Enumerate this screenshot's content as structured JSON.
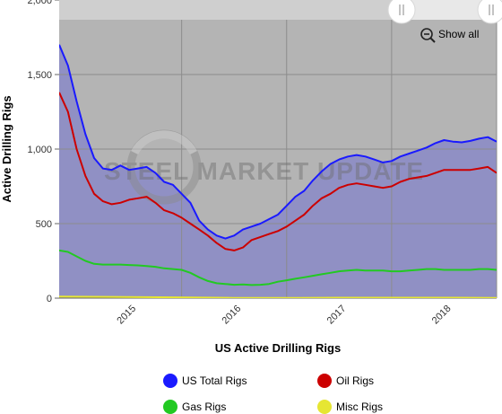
{
  "chart_data": {
    "type": "area",
    "title": "",
    "xlabel": "US Active Drilling Rigs",
    "ylabel": "Active Drilling Rigs",
    "ylim": [
      0,
      2000
    ],
    "yticks": [
      0,
      500,
      1000,
      1500,
      2000
    ],
    "ytick_labels": [
      "0",
      "500",
      "1,000",
      "1,500",
      "2,000"
    ],
    "x_tick_labels": [
      "2015",
      "2016",
      "2017",
      "2018"
    ],
    "xlim": [
      "2014-10",
      "2018-12"
    ],
    "grid": true,
    "legend_position": "bottom",
    "watermark": "STEEL MARKET UPDATE",
    "zoom_label": "Show all",
    "series": [
      {
        "name": "US Total Rigs",
        "color": "#1a1aff",
        "x": [
          "2014-10",
          "2014-11",
          "2014-12",
          "2015-01",
          "2015-02",
          "2015-03",
          "2015-04",
          "2015-05",
          "2015-06",
          "2015-07",
          "2015-08",
          "2015-09",
          "2015-10",
          "2015-11",
          "2015-12",
          "2016-01",
          "2016-02",
          "2016-03",
          "2016-04",
          "2016-05",
          "2016-06",
          "2016-07",
          "2016-08",
          "2016-09",
          "2016-10",
          "2016-11",
          "2016-12",
          "2017-01",
          "2017-02",
          "2017-03",
          "2017-04",
          "2017-05",
          "2017-06",
          "2017-07",
          "2017-08",
          "2017-09",
          "2017-10",
          "2017-11",
          "2017-12",
          "2018-01",
          "2018-02",
          "2018-03",
          "2018-04",
          "2018-05",
          "2018-06",
          "2018-07",
          "2018-08",
          "2018-09",
          "2018-10",
          "2018-11",
          "2018-12"
        ],
        "values": [
          1700,
          1560,
          1320,
          1100,
          940,
          870,
          860,
          890,
          860,
          870,
          880,
          840,
          780,
          760,
          700,
          640,
          520,
          460,
          420,
          400,
          420,
          460,
          480,
          500,
          530,
          560,
          620,
          680,
          720,
          790,
          850,
          900,
          930,
          950,
          960,
          950,
          930,
          910,
          920,
          950,
          970,
          990,
          1010,
          1040,
          1060,
          1050,
          1045,
          1055,
          1070,
          1080,
          1050
        ]
      },
      {
        "name": "Oil Rigs",
        "color": "#cc0000",
        "x": [
          "2014-10",
          "2014-11",
          "2014-12",
          "2015-01",
          "2015-02",
          "2015-03",
          "2015-04",
          "2015-05",
          "2015-06",
          "2015-07",
          "2015-08",
          "2015-09",
          "2015-10",
          "2015-11",
          "2015-12",
          "2016-01",
          "2016-02",
          "2016-03",
          "2016-04",
          "2016-05",
          "2016-06",
          "2016-07",
          "2016-08",
          "2016-09",
          "2016-10",
          "2016-11",
          "2016-12",
          "2017-01",
          "2017-02",
          "2017-03",
          "2017-04",
          "2017-05",
          "2017-06",
          "2017-07",
          "2017-08",
          "2017-09",
          "2017-10",
          "2017-11",
          "2017-12",
          "2018-01",
          "2018-02",
          "2018-03",
          "2018-04",
          "2018-05",
          "2018-06",
          "2018-07",
          "2018-08",
          "2018-09",
          "2018-10",
          "2018-11",
          "2018-12"
        ],
        "values": [
          1380,
          1250,
          1000,
          820,
          700,
          650,
          630,
          640,
          660,
          670,
          680,
          640,
          590,
          570,
          540,
          500,
          460,
          420,
          370,
          330,
          320,
          340,
          390,
          410,
          430,
          450,
          480,
          520,
          560,
          620,
          670,
          700,
          740,
          760,
          770,
          760,
          750,
          740,
          750,
          780,
          800,
          810,
          820,
          840,
          860,
          860,
          860,
          860,
          870,
          880,
          840
        ]
      },
      {
        "name": "Gas Rigs",
        "color": "#22c922",
        "x": [
          "2014-10",
          "2014-11",
          "2014-12",
          "2015-01",
          "2015-02",
          "2015-03",
          "2015-04",
          "2015-05",
          "2015-06",
          "2015-07",
          "2015-08",
          "2015-09",
          "2015-10",
          "2015-11",
          "2015-12",
          "2016-01",
          "2016-02",
          "2016-03",
          "2016-04",
          "2016-05",
          "2016-06",
          "2016-07",
          "2016-08",
          "2016-09",
          "2016-10",
          "2016-11",
          "2016-12",
          "2017-01",
          "2017-02",
          "2017-03",
          "2017-04",
          "2017-05",
          "2017-06",
          "2017-07",
          "2017-08",
          "2017-09",
          "2017-10",
          "2017-11",
          "2017-12",
          "2018-01",
          "2018-02",
          "2018-03",
          "2018-04",
          "2018-05",
          "2018-06",
          "2018-07",
          "2018-08",
          "2018-09",
          "2018-10",
          "2018-11",
          "2018-12"
        ],
        "values": [
          320,
          310,
          280,
          250,
          230,
          225,
          225,
          225,
          222,
          220,
          215,
          210,
          200,
          195,
          190,
          170,
          140,
          115,
          100,
          95,
          90,
          92,
          88,
          90,
          95,
          110,
          120,
          130,
          140,
          150,
          160,
          170,
          180,
          185,
          190,
          185,
          185,
          185,
          180,
          180,
          185,
          190,
          195,
          195,
          190,
          190,
          190,
          190,
          195,
          195,
          190
        ]
      },
      {
        "name": "Misc Rigs",
        "color": "#e6e633",
        "x": [
          "2014-10",
          "2015-06",
          "2016-01",
          "2016-06",
          "2017-01",
          "2017-06",
          "2018-01",
          "2018-06",
          "2018-12"
        ],
        "values": [
          10,
          8,
          4,
          2,
          2,
          3,
          3,
          3,
          2
        ]
      }
    ]
  }
}
